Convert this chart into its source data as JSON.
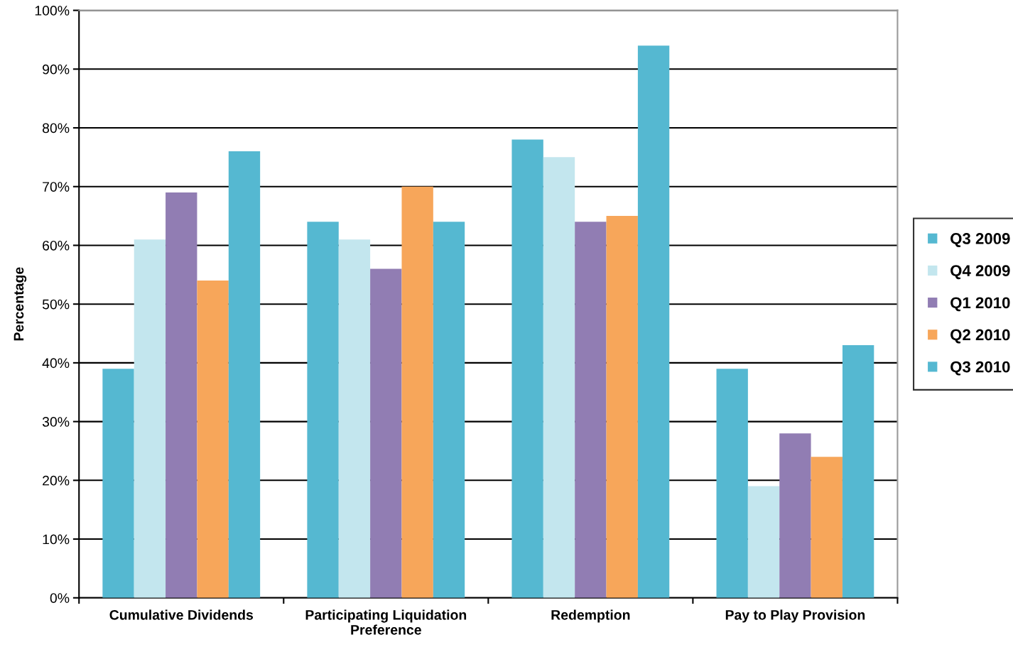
{
  "chart_data": {
    "type": "bar",
    "ylabel": "Percentage",
    "categories": [
      "Cumulative Dividends",
      "Participating Liquidation Preference",
      "Redemption",
      "Pay to Play Provision"
    ],
    "series": [
      {
        "name": "Q3 2009",
        "color": "#55b8d1",
        "values": [
          39,
          64,
          78,
          39
        ]
      },
      {
        "name": "Q4 2009",
        "color": "#c3e6ee",
        "values": [
          61,
          61,
          75,
          19
        ]
      },
      {
        "name": "Q1 2010",
        "color": "#917db3",
        "values": [
          69,
          56,
          64,
          28
        ]
      },
      {
        "name": "Q2 2010",
        "color": "#f7a65a",
        "values": [
          54,
          70,
          65,
          24
        ]
      },
      {
        "name": "Q3 2010",
        "color": "#55b8d1",
        "values": [
          76,
          64,
          94,
          43
        ]
      }
    ],
    "ylim": [
      0,
      100
    ],
    "yticks": [
      {
        "value": 0,
        "label": "0%"
      },
      {
        "value": 10,
        "label": "10%"
      },
      {
        "value": 20,
        "label": "20%"
      },
      {
        "value": 30,
        "label": "30%"
      },
      {
        "value": 40,
        "label": "40%"
      },
      {
        "value": 50,
        "label": "50%"
      },
      {
        "value": 60,
        "label": "60%"
      },
      {
        "value": 70,
        "label": "70%"
      },
      {
        "value": 80,
        "label": "80%"
      },
      {
        "value": 90,
        "label": "90%"
      },
      {
        "value": 100,
        "label": "100%"
      }
    ],
    "grid": "y",
    "legend": "right"
  }
}
